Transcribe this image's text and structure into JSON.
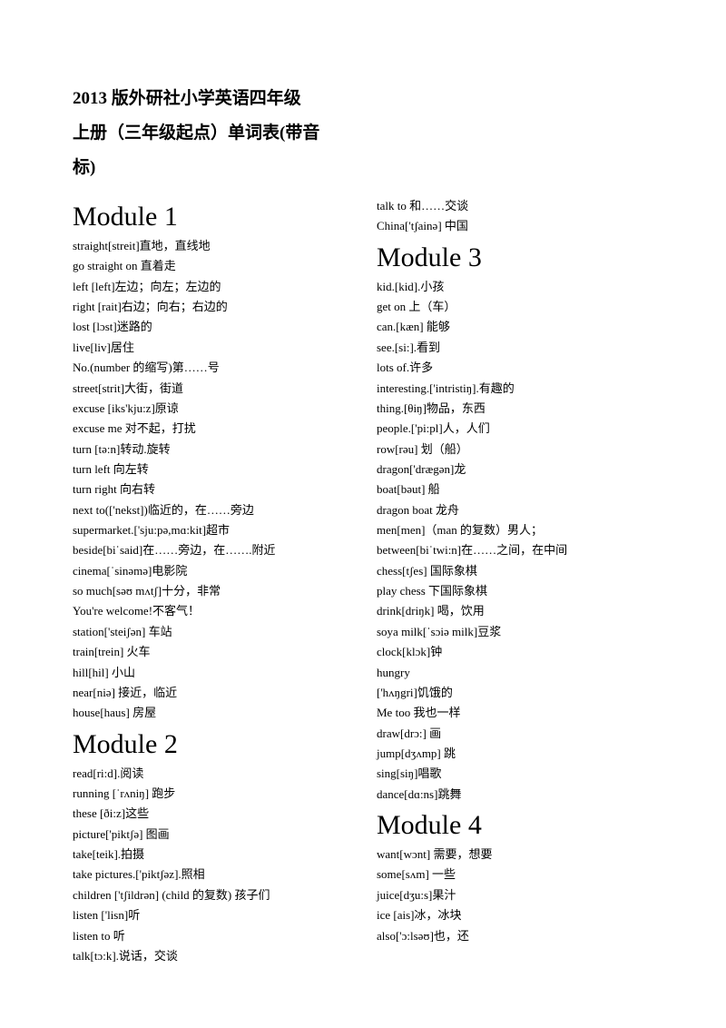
{
  "title": {
    "line1": "2013 版外研社小学英语四年级",
    "line2": "上册（三年级起点）单词表(带音",
    "line3": "标)"
  },
  "left_column": [
    {
      "type": "heading",
      "text": "Module 1"
    },
    {
      "type": "entry",
      "text": "straight[streit]直地，直线地"
    },
    {
      "type": "entry",
      "text": "go straight on  直着走"
    },
    {
      "type": "entry",
      "text": "left [left]左边；向左；左边的"
    },
    {
      "type": "entry",
      "text": "right [rait]右边；向右；右边的"
    },
    {
      "type": "entry",
      "text": "lost [lɔst]迷路的"
    },
    {
      "type": "entry",
      "text": "live[liv]居住"
    },
    {
      "type": "entry",
      "text": "No.(number 的缩写)第……号"
    },
    {
      "type": "entry",
      "text": "street[strit]大街，街道"
    },
    {
      "type": "entry",
      "text": "excuse [iks'kju:z]原谅"
    },
    {
      "type": "entry",
      "text": "excuse me 对不起，打扰"
    },
    {
      "type": "entry",
      "text": "turn [tə:n]转动.旋转"
    },
    {
      "type": "entry",
      "text": "turn left  向左转"
    },
    {
      "type": "entry",
      "text": "turn right  向右转"
    },
    {
      "type": "entry",
      "text": "next to(['nekst])临近的，在……旁边"
    },
    {
      "type": "entry",
      "text": "supermarket.['sju:pə,mɑ:kit]超市"
    },
    {
      "type": "entry",
      "text": "beside[biˈsaid]在……旁边，在…….附近"
    },
    {
      "type": "entry",
      "text": "cinema[ˈsinəmə]电影院"
    },
    {
      "type": "entry",
      "text": "so much[səʊ mʌtʃ]十分，非常"
    },
    {
      "type": "entry",
      "text": "You're welcome!不客气！"
    },
    {
      "type": "entry",
      "text": "station['steiʃən]  车站"
    },
    {
      "type": "entry",
      "text": "train[trein]  火车"
    },
    {
      "type": "entry",
      "text": "hill[hil]  小山"
    },
    {
      "type": "entry",
      "text": "near[niə]  接近，临近"
    },
    {
      "type": "entry",
      "text": "house[haus]  房屋"
    },
    {
      "type": "heading",
      "text": "Module 2"
    },
    {
      "type": "entry",
      "text": "read[ri:d].阅读"
    },
    {
      "type": "entry",
      "text": "running [ˈrʌniŋ]  跑步"
    },
    {
      "type": "entry",
      "text": "these [ði:z]这些"
    },
    {
      "type": "entry",
      "text": "picture['piktʃə]  图画"
    },
    {
      "type": "entry",
      "text": "take[teik].拍摄"
    },
    {
      "type": "entry",
      "text": "take pictures.['piktʃəz].照相"
    },
    {
      "type": "entry",
      "text": "children ['tʃildrən] (child 的复数)  孩子们"
    },
    {
      "type": "entry",
      "text": "listen ['lisn]听"
    },
    {
      "type": "entry",
      "text": "listen to 听"
    },
    {
      "type": "entry",
      "text": "talk[tɔ:k].说话，交谈"
    }
  ],
  "right_column": [
    {
      "type": "entry",
      "text": "talk to  和……交谈"
    },
    {
      "type": "entry",
      "text": "China['tʃainə]  中国"
    },
    {
      "type": "heading",
      "text": "Module 3"
    },
    {
      "type": "entry",
      "text": "kid.[kid].小孩"
    },
    {
      "type": "entry",
      "text": "get on  上（车）"
    },
    {
      "type": "entry",
      "text": "can.[kæn] 能够"
    },
    {
      "type": "entry",
      "text": "see.[si:].看到"
    },
    {
      "type": "entry",
      "text": "lots of.许多"
    },
    {
      "type": "entry",
      "text": "interesting.['intristiŋ].有趣的"
    },
    {
      "type": "entry",
      "text": "thing.[θiŋ]物品，东西"
    },
    {
      "type": "entry",
      "text": "people.['pi:pl]人，人们"
    },
    {
      "type": "entry",
      "text": "row[rəu]  划（船）"
    },
    {
      "type": "entry",
      "text": "dragon['drægən]龙"
    },
    {
      "type": "entry",
      "text": "boat[bəut]  船"
    },
    {
      "type": "entry",
      "text": "dragon boat 龙舟"
    },
    {
      "type": "entry",
      "text": "men[men]（man 的复数）男人；"
    },
    {
      "type": "entry",
      "text": "between[biˈtwi:n]在……之间，在中间"
    },
    {
      "type": "entry",
      "text": "chess[tʃes]  国际象棋"
    },
    {
      "type": "entry",
      "text": "play chess 下国际象棋"
    },
    {
      "type": "entry",
      "text": "drink[driŋk]  喝，饮用"
    },
    {
      "type": "entry",
      "text": "soya milk[ˈsɔiə milk]豆浆"
    },
    {
      "type": "entry",
      "text": "clock[klɔk]钟"
    },
    {
      "type": "entry",
      "text": "hungry"
    },
    {
      "type": "entry",
      "text": "['hʌŋgri]饥饿的"
    },
    {
      "type": "entry",
      "text": "Me too 我也一样"
    },
    {
      "type": "entry",
      "text": "draw[drɔ:]  画"
    },
    {
      "type": "entry",
      "text": "jump[dʒʌmp]  跳"
    },
    {
      "type": "entry",
      "text": "sing[siŋ]唱歌"
    },
    {
      "type": "entry",
      "text": "dance[dɑ:ns]跳舞"
    },
    {
      "type": "heading",
      "text": "Module 4"
    },
    {
      "type": "entry",
      "text": "want[wɔnt]  需要，想要"
    },
    {
      "type": "entry",
      "text": "some[sʌm]  一些"
    },
    {
      "type": "entry",
      "text": "juice[dʒu:s]果汁"
    },
    {
      "type": "entry",
      "text": "ice [ais]冰，冰块"
    },
    {
      "type": "entry",
      "text": "also['ɔ:lsəʊ]也，还"
    }
  ]
}
